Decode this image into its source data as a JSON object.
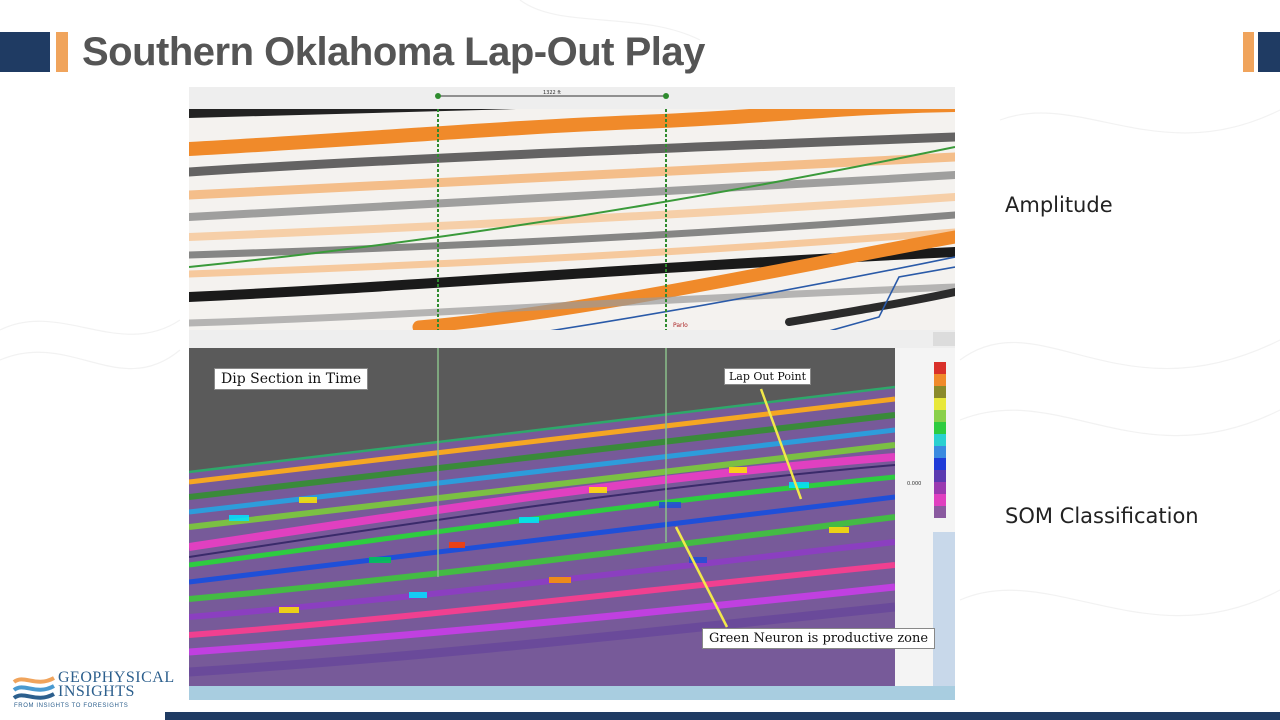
{
  "slide": {
    "title": "Southern Oklahoma Lap-Out Play"
  },
  "labels": {
    "amplitude": "Amplitude",
    "som": "SOM Classification"
  },
  "seismic_top": {
    "scale_label": "1322 ft",
    "well_label": "Parlo"
  },
  "seismic_bottom": {
    "section_label": "Dip Section in Time",
    "lap_out_label": "Lap Out Point",
    "green_neuron_label": "Green Neuron is productive zone",
    "scale_value": "0.000"
  },
  "logo": {
    "line1": "GEOPHYSICAL",
    "line2": "INSIGHTS",
    "tagline": "FROM INSIGHTS TO FORESIGHTS"
  },
  "colors": {
    "navy": "#1f3b63",
    "accent_orange": "#f0a45c",
    "title_gray": "#555555",
    "seismic_orange": "#f08a2a",
    "horizon_green": "#3a9a3a",
    "horizon_blue": "#2a5aa8",
    "callout_arrow": "#f2e84a"
  },
  "icons": {
    "som_colorbar": "som-colorbar-icon"
  }
}
